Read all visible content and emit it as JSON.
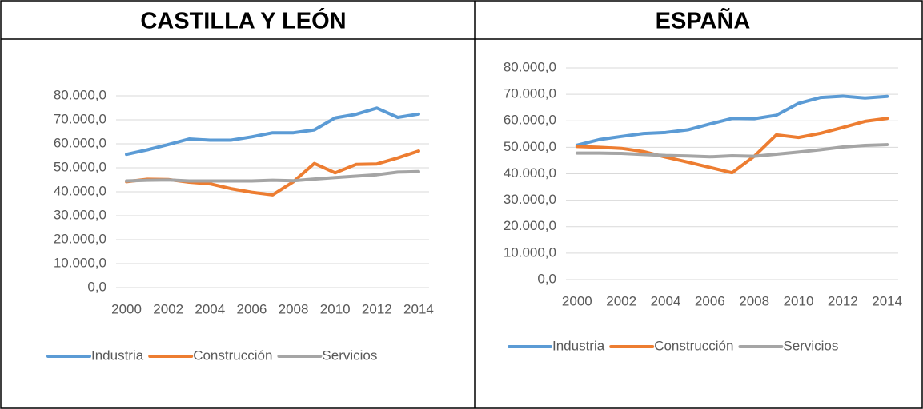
{
  "chart_data": [
    {
      "type": "line",
      "title": "CASTILLA Y LEÓN",
      "x": [
        2000,
        2001,
        2002,
        2003,
        2004,
        2005,
        2006,
        2007,
        2008,
        2009,
        2010,
        2011,
        2012,
        2013,
        2014
      ],
      "xlim": [
        1999.5,
        2014.5
      ],
      "xticks": [
        2000,
        2002,
        2004,
        2006,
        2008,
        2010,
        2012,
        2014
      ],
      "ylim": [
        0,
        80000
      ],
      "yticks": [
        {
          "value": 0,
          "label": "0,0"
        },
        {
          "value": 10000,
          "label": "10.000,0"
        },
        {
          "value": 20000,
          "label": "20.000,0"
        },
        {
          "value": 30000,
          "label": "30.000,0"
        },
        {
          "value": 40000,
          "label": "40.000,0"
        },
        {
          "value": 50000,
          "label": "50.000,0"
        },
        {
          "value": 60000,
          "label": "60.000,0"
        },
        {
          "value": 70000,
          "label": "70.000,0"
        },
        {
          "value": 80000,
          "label": "80.000,0"
        }
      ],
      "grid": true,
      "legend": "bottom",
      "series": [
        {
          "name": "Industria",
          "color": "#5b9bd5",
          "values": [
            55600,
            57500,
            59700,
            62000,
            61500,
            61500,
            62900,
            64600,
            64600,
            65800,
            70800,
            72300,
            74900,
            71000,
            72400
          ]
        },
        {
          "name": "Construcción",
          "color": "#ed7d31",
          "values": [
            44200,
            45200,
            45100,
            44000,
            43300,
            41300,
            39800,
            38700,
            44200,
            51800,
            47900,
            51400,
            51600,
            54100,
            57000
          ]
        },
        {
          "name": "Servicios",
          "color": "#a5a5a5",
          "values": [
            44500,
            44800,
            44900,
            44500,
            44500,
            44500,
            44500,
            44800,
            44600,
            45300,
            45900,
            46500,
            47100,
            48200,
            48400
          ]
        }
      ]
    },
    {
      "type": "line",
      "title": "ESPAÑA",
      "x": [
        2000,
        2001,
        2002,
        2003,
        2004,
        2005,
        2006,
        2007,
        2008,
        2009,
        2010,
        2011,
        2012,
        2013,
        2014
      ],
      "xlim": [
        1999.5,
        2014.5
      ],
      "xticks": [
        2000,
        2002,
        2004,
        2006,
        2008,
        2010,
        2012,
        2014
      ],
      "ylim": [
        0,
        80000
      ],
      "yticks": [
        {
          "value": 0,
          "label": "0,0"
        },
        {
          "value": 10000,
          "label": "10.000,0"
        },
        {
          "value": 20000,
          "label": "20.000,0"
        },
        {
          "value": 30000,
          "label": "30.000,0"
        },
        {
          "value": 40000,
          "label": "40.000,0"
        },
        {
          "value": 50000,
          "label": "50.000,0"
        },
        {
          "value": 60000,
          "label": "60.000,0"
        },
        {
          "value": 70000,
          "label": "70.000,0"
        },
        {
          "value": 80000,
          "label": "80.000,0"
        }
      ],
      "grid": true,
      "legend": "bottom",
      "series": [
        {
          "name": "Industria",
          "color": "#5b9bd5",
          "values": [
            50800,
            52900,
            54100,
            55200,
            55600,
            56600,
            58800,
            60900,
            60800,
            62100,
            66600,
            68800,
            69300,
            68600,
            69200
          ]
        },
        {
          "name": "Construcción",
          "color": "#ed7d31",
          "values": [
            50300,
            50000,
            49600,
            48400,
            46300,
            44400,
            42400,
            40400,
            46600,
            54700,
            53700,
            55300,
            57500,
            59800,
            60900
          ]
        },
        {
          "name": "Servicios",
          "color": "#a5a5a5",
          "values": [
            47800,
            47800,
            47700,
            47300,
            46900,
            46700,
            46400,
            46800,
            46600,
            47400,
            48200,
            49100,
            50100,
            50700,
            51000
          ]
        }
      ]
    }
  ]
}
